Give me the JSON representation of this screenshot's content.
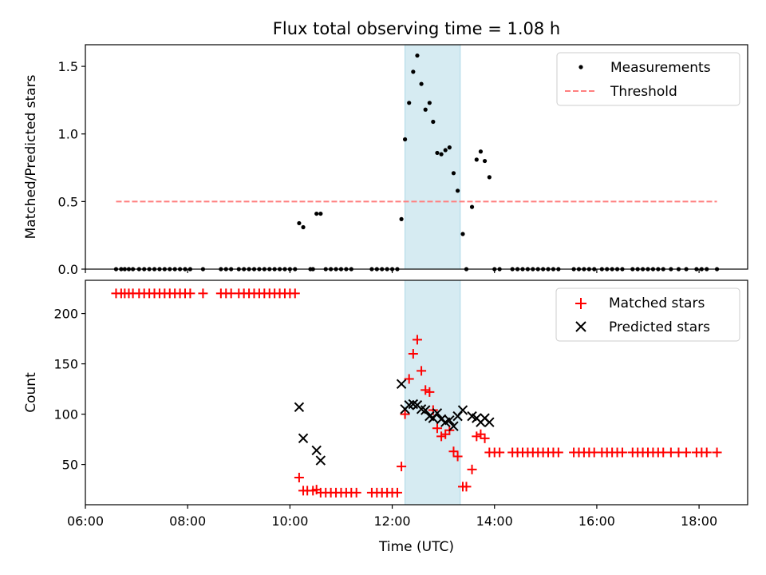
{
  "figure": {
    "title": "Flux total observing time = 1.08 h",
    "xlabel": "Time (UTC)"
  },
  "chart_data": [
    {
      "type": "scatter",
      "ylabel": "Matched/Predicted stars",
      "xlim": [
        6.0,
        18.95
      ],
      "ylim": [
        0,
        1.66
      ],
      "x_unit": "hours UTC",
      "yticks": [
        0.0,
        0.5,
        1.0,
        1.5
      ],
      "ytick_labels": [
        "0.0",
        "0.5",
        "1.0",
        "1.5"
      ],
      "highlight_span": [
        12.25,
        13.33
      ],
      "highlight_color": "#add8e6",
      "legend": {
        "placement": "top-right",
        "entries": [
          "Measurements",
          "Threshold"
        ]
      },
      "series": [
        {
          "name": "Measurements",
          "marker": "dot",
          "color": "#000000",
          "points": [
            [
              6.6,
              0
            ],
            [
              6.7,
              0
            ],
            [
              6.77,
              0
            ],
            [
              6.85,
              0
            ],
            [
              6.93,
              0
            ],
            [
              7.05,
              0
            ],
            [
              7.15,
              0
            ],
            [
              7.25,
              0
            ],
            [
              7.35,
              0
            ],
            [
              7.45,
              0
            ],
            [
              7.55,
              0
            ],
            [
              7.65,
              0
            ],
            [
              7.75,
              0
            ],
            [
              7.85,
              0
            ],
            [
              7.95,
              0
            ],
            [
              8.05,
              0
            ],
            [
              8.3,
              0
            ],
            [
              8.65,
              0
            ],
            [
              8.75,
              0
            ],
            [
              8.85,
              0
            ],
            [
              9.0,
              0
            ],
            [
              9.1,
              0
            ],
            [
              9.2,
              0
            ],
            [
              9.3,
              0
            ],
            [
              9.4,
              0
            ],
            [
              9.5,
              0
            ],
            [
              9.6,
              0
            ],
            [
              9.7,
              0
            ],
            [
              9.8,
              0
            ],
            [
              9.9,
              0
            ],
            [
              10.0,
              0
            ],
            [
              10.1,
              0
            ],
            [
              10.18,
              0.34
            ],
            [
              10.26,
              0.31
            ],
            [
              10.4,
              0
            ],
            [
              10.45,
              0
            ],
            [
              10.52,
              0.41
            ],
            [
              10.6,
              0.41
            ],
            [
              10.7,
              0
            ],
            [
              10.8,
              0
            ],
            [
              10.9,
              0
            ],
            [
              11.0,
              0
            ],
            [
              11.1,
              0
            ],
            [
              11.2,
              0
            ],
            [
              11.6,
              0
            ],
            [
              11.7,
              0
            ],
            [
              11.8,
              0
            ],
            [
              11.9,
              0
            ],
            [
              12.0,
              0
            ],
            [
              12.1,
              0
            ],
            [
              12.18,
              0.37
            ],
            [
              12.25,
              0.96
            ],
            [
              12.33,
              1.23
            ],
            [
              12.41,
              1.46
            ],
            [
              12.49,
              1.58
            ],
            [
              12.57,
              1.37
            ],
            [
              12.65,
              1.18
            ],
            [
              12.73,
              1.23
            ],
            [
              12.8,
              1.09
            ],
            [
              12.88,
              0.86
            ],
            [
              12.96,
              0.85
            ],
            [
              13.04,
              0.88
            ],
            [
              13.12,
              0.9
            ],
            [
              13.2,
              0.71
            ],
            [
              13.28,
              0.58
            ],
            [
              13.38,
              0.26
            ],
            [
              13.45,
              0
            ],
            [
              13.56,
              0.46
            ],
            [
              13.65,
              0.81
            ],
            [
              13.73,
              0.87
            ],
            [
              13.81,
              0.8
            ],
            [
              13.9,
              0.68
            ],
            [
              14.0,
              0
            ],
            [
              14.1,
              0
            ],
            [
              14.35,
              0
            ],
            [
              14.45,
              0
            ],
            [
              14.55,
              0
            ],
            [
              14.65,
              0
            ],
            [
              14.75,
              0
            ],
            [
              14.85,
              0
            ],
            [
              14.95,
              0
            ],
            [
              15.05,
              0
            ],
            [
              15.15,
              0
            ],
            [
              15.25,
              0
            ],
            [
              15.55,
              0
            ],
            [
              15.65,
              0
            ],
            [
              15.75,
              0
            ],
            [
              15.85,
              0
            ],
            [
              15.95,
              0
            ],
            [
              16.1,
              0
            ],
            [
              16.2,
              0
            ],
            [
              16.3,
              0
            ],
            [
              16.4,
              0
            ],
            [
              16.5,
              0
            ],
            [
              16.7,
              0
            ],
            [
              16.8,
              0
            ],
            [
              16.9,
              0
            ],
            [
              17.0,
              0
            ],
            [
              17.1,
              0
            ],
            [
              17.2,
              0
            ],
            [
              17.3,
              0
            ],
            [
              17.45,
              0
            ],
            [
              17.6,
              0
            ],
            [
              17.75,
              0
            ],
            [
              17.95,
              0
            ],
            [
              18.05,
              0
            ],
            [
              18.15,
              0
            ],
            [
              18.35,
              0
            ]
          ]
        },
        {
          "name": "Threshold",
          "style": "dashed",
          "color": "#ff7f7f",
          "x": [
            6.6,
            18.35
          ],
          "y": [
            0.5,
            0.5
          ]
        }
      ]
    },
    {
      "type": "scatter",
      "ylabel": "Count",
      "xlim": [
        6.0,
        18.95
      ],
      "ylim": [
        10,
        233
      ],
      "x_unit": "hours UTC",
      "yticks": [
        50,
        100,
        150,
        200
      ],
      "ytick_labels": [
        "50",
        "100",
        "150",
        "200"
      ],
      "xticks": [
        6,
        8,
        10,
        12,
        14,
        16,
        18
      ],
      "xtick_labels": [
        "06:00",
        "08:00",
        "10:00",
        "12:00",
        "14:00",
        "16:00",
        "18:00"
      ],
      "highlight_span": [
        12.25,
        13.33
      ],
      "highlight_color": "#add8e6",
      "legend": {
        "placement": "top-right",
        "entries": [
          "Matched stars",
          "Predicted stars"
        ]
      },
      "series": [
        {
          "name": "Matched stars",
          "marker": "plus",
          "color": "#ff0000",
          "points": [
            [
              6.6,
              220
            ],
            [
              6.7,
              220
            ],
            [
              6.77,
              220
            ],
            [
              6.85,
              220
            ],
            [
              6.93,
              220
            ],
            [
              7.05,
              220
            ],
            [
              7.15,
              220
            ],
            [
              7.25,
              220
            ],
            [
              7.35,
              220
            ],
            [
              7.45,
              220
            ],
            [
              7.55,
              220
            ],
            [
              7.65,
              220
            ],
            [
              7.75,
              220
            ],
            [
              7.85,
              220
            ],
            [
              7.95,
              220
            ],
            [
              8.05,
              220
            ],
            [
              8.3,
              220
            ],
            [
              8.65,
              220
            ],
            [
              8.75,
              220
            ],
            [
              8.85,
              220
            ],
            [
              9.0,
              220
            ],
            [
              9.1,
              220
            ],
            [
              9.2,
              220
            ],
            [
              9.3,
              220
            ],
            [
              9.4,
              220
            ],
            [
              9.5,
              220
            ],
            [
              9.6,
              220
            ],
            [
              9.7,
              220
            ],
            [
              9.8,
              220
            ],
            [
              9.9,
              220
            ],
            [
              10.0,
              220
            ],
            [
              10.1,
              220
            ],
            [
              10.18,
              37
            ],
            [
              10.26,
              24
            ],
            [
              10.34,
              24
            ],
            [
              10.45,
              24
            ],
            [
              10.52,
              25
            ],
            [
              10.6,
              22
            ],
            [
              10.7,
              22
            ],
            [
              10.8,
              22
            ],
            [
              10.9,
              22
            ],
            [
              11.0,
              22
            ],
            [
              11.1,
              22
            ],
            [
              11.2,
              22
            ],
            [
              11.3,
              22
            ],
            [
              11.6,
              22
            ],
            [
              11.7,
              22
            ],
            [
              11.8,
              22
            ],
            [
              11.9,
              22
            ],
            [
              12.0,
              22
            ],
            [
              12.1,
              22
            ],
            [
              12.18,
              48
            ],
            [
              12.25,
              100
            ],
            [
              12.33,
              135
            ],
            [
              12.41,
              160
            ],
            [
              12.49,
              174
            ],
            [
              12.57,
              143
            ],
            [
              12.65,
              124
            ],
            [
              12.73,
              122
            ],
            [
              12.8,
              104
            ],
            [
              12.88,
              86
            ],
            [
              12.96,
              78
            ],
            [
              13.04,
              80
            ],
            [
              13.12,
              84
            ],
            [
              13.2,
              63
            ],
            [
              13.28,
              58
            ],
            [
              13.38,
              28
            ],
            [
              13.45,
              28
            ],
            [
              13.56,
              45
            ],
            [
              13.65,
              78
            ],
            [
              13.73,
              80
            ],
            [
              13.81,
              76
            ],
            [
              13.9,
              62
            ],
            [
              14.0,
              62
            ],
            [
              14.1,
              62
            ],
            [
              14.35,
              62
            ],
            [
              14.45,
              62
            ],
            [
              14.55,
              62
            ],
            [
              14.65,
              62
            ],
            [
              14.75,
              62
            ],
            [
              14.85,
              62
            ],
            [
              14.95,
              62
            ],
            [
              15.05,
              62
            ],
            [
              15.15,
              62
            ],
            [
              15.25,
              62
            ],
            [
              15.55,
              62
            ],
            [
              15.65,
              62
            ],
            [
              15.75,
              62
            ],
            [
              15.85,
              62
            ],
            [
              15.95,
              62
            ],
            [
              16.1,
              62
            ],
            [
              16.2,
              62
            ],
            [
              16.3,
              62
            ],
            [
              16.4,
              62
            ],
            [
              16.5,
              62
            ],
            [
              16.7,
              62
            ],
            [
              16.8,
              62
            ],
            [
              16.9,
              62
            ],
            [
              17.0,
              62
            ],
            [
              17.1,
              62
            ],
            [
              17.2,
              62
            ],
            [
              17.3,
              62
            ],
            [
              17.45,
              62
            ],
            [
              17.6,
              62
            ],
            [
              17.75,
              62
            ],
            [
              17.95,
              62
            ],
            [
              18.05,
              62
            ],
            [
              18.15,
              62
            ],
            [
              18.35,
              62
            ]
          ]
        },
        {
          "name": "Predicted stars",
          "marker": "x",
          "color": "#000000",
          "points": [
            [
              10.18,
              107
            ],
            [
              10.26,
              76
            ],
            [
              10.52,
              64
            ],
            [
              10.6,
              54
            ],
            [
              12.18,
              130
            ],
            [
              12.25,
              105
            ],
            [
              12.33,
              109
            ],
            [
              12.41,
              110
            ],
            [
              12.49,
              109
            ],
            [
              12.57,
              105
            ],
            [
              12.65,
              104
            ],
            [
              12.73,
              98
            ],
            [
              12.8,
              96
            ],
            [
              12.88,
              101
            ],
            [
              12.96,
              95
            ],
            [
              13.04,
              92
            ],
            [
              13.12,
              94
            ],
            [
              13.2,
              88
            ],
            [
              13.28,
              98
            ],
            [
              13.38,
              104
            ],
            [
              13.56,
              98
            ],
            [
              13.65,
              96
            ],
            [
              13.73,
              92
            ],
            [
              13.81,
              96
            ],
            [
              13.9,
              92
            ]
          ]
        }
      ]
    }
  ]
}
